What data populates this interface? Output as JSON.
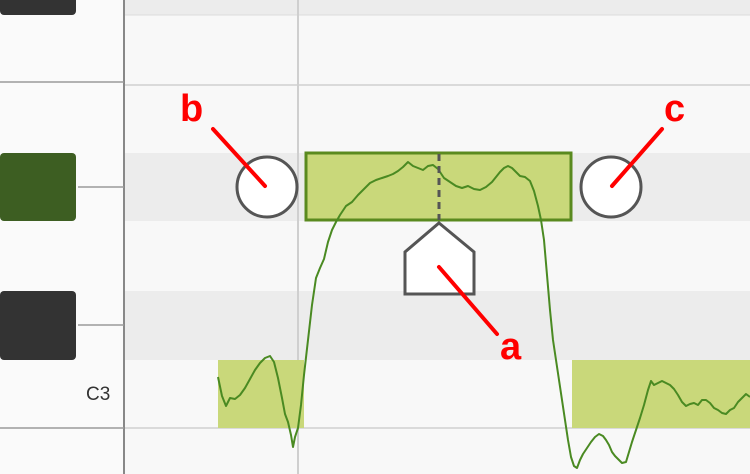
{
  "piano": {
    "key_label": "C3"
  },
  "note": {
    "state": "selected",
    "colors": {
      "fill": "#c9d87a",
      "border": "#5a8a1f",
      "pitch_curve": "#4a8a22",
      "active_key": "#3d5e22"
    }
  },
  "handles": {
    "left_icon": "circle-handle-icon",
    "right_icon": "circle-handle-icon",
    "center_icon": "pentagon-pointer-icon"
  },
  "callouts": {
    "a": "a",
    "b": "b",
    "c": "c",
    "color": "#ff0000"
  }
}
